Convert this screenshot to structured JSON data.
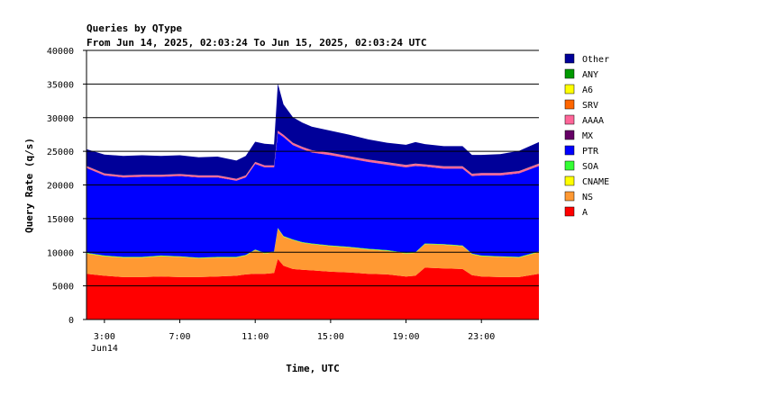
{
  "chart_data": {
    "type": "area",
    "stacked": true,
    "title": "Queries by QType",
    "subtitle": "From Jun 14, 2025, 02:03:24 To Jun 15, 2025, 02:03:24 UTC",
    "xlabel": "Time, UTC",
    "ylabel": "Query Rate (q/s)",
    "ylim": [
      0,
      40000
    ],
    "y_ticks": [
      0,
      5000,
      10000,
      15000,
      20000,
      25000,
      30000,
      35000,
      40000
    ],
    "xlim": [
      2.05,
      26.05
    ],
    "x_ticks": [
      {
        "x": 3,
        "label": "3:00",
        "sublabel": "Jun14"
      },
      {
        "x": 7,
        "label": "7:00",
        "sublabel": ""
      },
      {
        "x": 11,
        "label": "11:00",
        "sublabel": ""
      },
      {
        "x": 15,
        "label": "15:00",
        "sublabel": ""
      },
      {
        "x": 19,
        "label": "19:00",
        "sublabel": ""
      },
      {
        "x": 23,
        "label": "23:00",
        "sublabel": ""
      }
    ],
    "grid": "horizontal",
    "legend_position": "right",
    "x": [
      2.05,
      3,
      4,
      5,
      6,
      7,
      8,
      9,
      10,
      10.5,
      11,
      11.5,
      12,
      12.2,
      12.5,
      13,
      13.5,
      14,
      15,
      16,
      17,
      18,
      19,
      19.5,
      20,
      21,
      22,
      22.5,
      23,
      24,
      25,
      26.05
    ],
    "series": [
      {
        "name": "A",
        "color": "#ff0000",
        "values": [
          6800,
          6500,
          6300,
          6300,
          6400,
          6300,
          6300,
          6400,
          6500,
          6700,
          6800,
          6800,
          6900,
          9000,
          8000,
          7500,
          7400,
          7300,
          7100,
          7000,
          6800,
          6700,
          6400,
          6500,
          7700,
          7600,
          7500,
          6600,
          6400,
          6300,
          6300,
          6800
        ]
      },
      {
        "name": "NS",
        "color": "#ff9933",
        "values": [
          3000,
          2900,
          2900,
          2900,
          3000,
          3000,
          2800,
          2800,
          2700,
          2800,
          3500,
          3000,
          3100,
          4500,
          4300,
          4300,
          4000,
          3900,
          3800,
          3700,
          3600,
          3500,
          3400,
          3400,
          3500,
          3500,
          3400,
          3100,
          3000,
          3000,
          2900,
          3200
        ]
      },
      {
        "name": "CNAME",
        "color": "#ffff00",
        "values": [
          30,
          30,
          30,
          30,
          30,
          30,
          30,
          30,
          30,
          30,
          30,
          30,
          30,
          30,
          30,
          30,
          30,
          30,
          30,
          30,
          30,
          30,
          30,
          30,
          30,
          30,
          30,
          30,
          30,
          30,
          30,
          30
        ]
      },
      {
        "name": "SOA",
        "color": "#33ff33",
        "values": [
          80,
          80,
          80,
          80,
          80,
          80,
          80,
          80,
          80,
          80,
          80,
          80,
          80,
          80,
          80,
          80,
          80,
          80,
          80,
          80,
          80,
          80,
          80,
          80,
          80,
          80,
          80,
          80,
          80,
          80,
          80,
          80
        ]
      },
      {
        "name": "PTR",
        "color": "#0000ff",
        "values": [
          12600,
          11900,
          11800,
          11900,
          11700,
          11900,
          11900,
          11800,
          11300,
          11500,
          12700,
          12700,
          12500,
          14100,
          14700,
          14000,
          13800,
          13500,
          13400,
          13100,
          12900,
          12700,
          12700,
          12800,
          11400,
          11200,
          11400,
          11500,
          11900,
          12000,
          12400,
          12700
        ]
      },
      {
        "name": "MX",
        "color": "#660066",
        "values": [
          40,
          40,
          40,
          40,
          40,
          40,
          40,
          40,
          40,
          40,
          40,
          40,
          40,
          40,
          40,
          40,
          40,
          40,
          40,
          40,
          40,
          40,
          40,
          40,
          40,
          40,
          40,
          40,
          40,
          40,
          40,
          40
        ]
      },
      {
        "name": "AAAA",
        "color": "#ff6699",
        "values": [
          250,
          250,
          250,
          250,
          250,
          250,
          250,
          250,
          250,
          250,
          250,
          250,
          250,
          300,
          300,
          300,
          300,
          300,
          300,
          300,
          300,
          300,
          300,
          300,
          300,
          300,
          300,
          300,
          300,
          300,
          300,
          300
        ]
      },
      {
        "name": "SRV",
        "color": "#ff6600",
        "values": [
          10,
          10,
          10,
          10,
          10,
          10,
          10,
          10,
          10,
          10,
          10,
          10,
          10,
          10,
          10,
          10,
          10,
          10,
          10,
          10,
          10,
          10,
          10,
          10,
          10,
          10,
          10,
          10,
          10,
          10,
          10,
          10
        ]
      },
      {
        "name": "A6",
        "color": "#ffff00",
        "values": [
          5,
          5,
          5,
          5,
          5,
          5,
          5,
          5,
          5,
          5,
          5,
          5,
          5,
          5,
          5,
          5,
          5,
          5,
          5,
          5,
          5,
          5,
          5,
          5,
          5,
          5,
          5,
          5,
          5,
          5,
          5,
          5
        ]
      },
      {
        "name": "ANY",
        "color": "#009900",
        "values": [
          5,
          5,
          5,
          5,
          5,
          5,
          5,
          5,
          5,
          5,
          5,
          5,
          5,
          5,
          5,
          5,
          5,
          5,
          5,
          5,
          5,
          5,
          5,
          5,
          5,
          5,
          5,
          5,
          5,
          5,
          5,
          5
        ]
      },
      {
        "name": "Other",
        "color": "#000099",
        "values": [
          2500,
          2800,
          2900,
          2900,
          2800,
          2800,
          2700,
          2800,
          2700,
          2900,
          3000,
          3200,
          3100,
          7000,
          4500,
          3800,
          3600,
          3500,
          3300,
          3200,
          3000,
          2900,
          3000,
          3200,
          3000,
          3000,
          3000,
          2800,
          2700,
          2800,
          3000,
          3200
        ]
      }
    ]
  }
}
